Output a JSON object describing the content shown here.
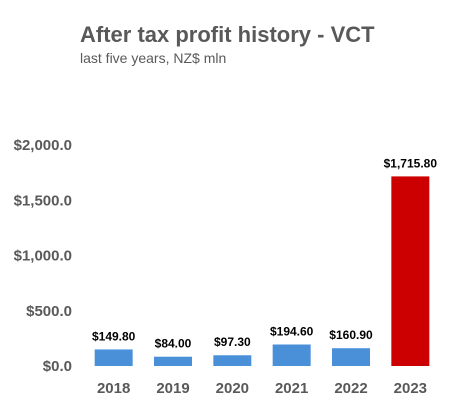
{
  "chart_data": {
    "type": "bar",
    "title": "After tax profit history - VCT",
    "subtitle": "last five years, NZ$ mln",
    "categories": [
      "2018",
      "2019",
      "2020",
      "2021",
      "2022",
      "2023"
    ],
    "values": [
      149.8,
      84.0,
      97.3,
      194.6,
      160.9,
      1715.8
    ],
    "data_labels": [
      "$149.80",
      "$84.00",
      "$97.30",
      "$194.60",
      "$160.90",
      "$1,715.80"
    ],
    "y_ticks": [
      0,
      500,
      1000,
      1500,
      2000
    ],
    "y_tick_labels": [
      "$0.0",
      "$500.0",
      "$1,000.0",
      "$1,500.0",
      "$2,000.0"
    ],
    "ylim": [
      0,
      2000
    ],
    "grid": false,
    "legend": "none",
    "colors": {
      "bar": "#4a90d9",
      "highlight_bar": "#cc0000",
      "text": "#595959"
    },
    "highlight_index": 5
  }
}
